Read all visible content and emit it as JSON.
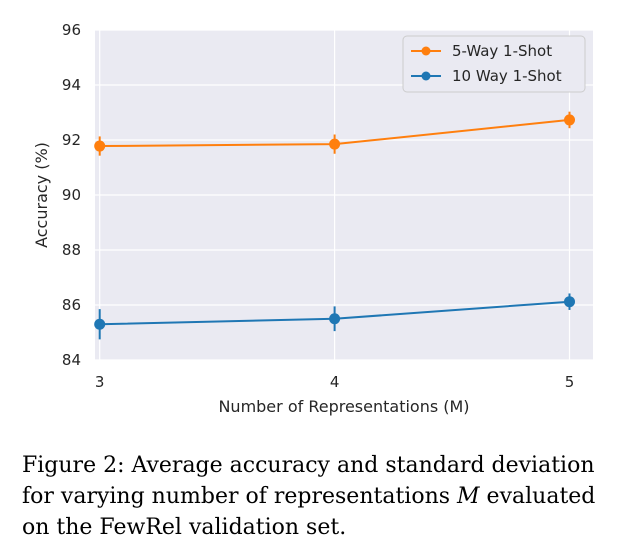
{
  "chart_data": {
    "type": "line",
    "x": [
      3,
      4,
      5
    ],
    "xticks": [
      "3",
      "4",
      "5"
    ],
    "yticks": [
      "84",
      "86",
      "88",
      "90",
      "92",
      "94",
      "96"
    ],
    "ylim": [
      84,
      96
    ],
    "xlim": [
      2.98,
      5.1
    ],
    "xlabel": "Number of Representations (M)",
    "ylabel": "Accuracy (%)",
    "grid": true,
    "legend_position": "top-right",
    "series": [
      {
        "name": "5-Way 1-Shot",
        "color": "#ff7f0e",
        "values": [
          91.78,
          91.85,
          92.73
        ],
        "errors": [
          0.35,
          0.35,
          0.3
        ]
      },
      {
        "name": "10 Way 1-Shot",
        "color": "#1f77b4",
        "values": [
          85.3,
          85.5,
          86.12
        ],
        "errors": [
          0.55,
          0.45,
          0.3
        ]
      }
    ]
  },
  "caption": {
    "prefix": "Figure 2: Average accuracy and standard deviation for varying number of representations ",
    "symbol": "M",
    "suffix": " evaluated on the FewRel validation set."
  }
}
